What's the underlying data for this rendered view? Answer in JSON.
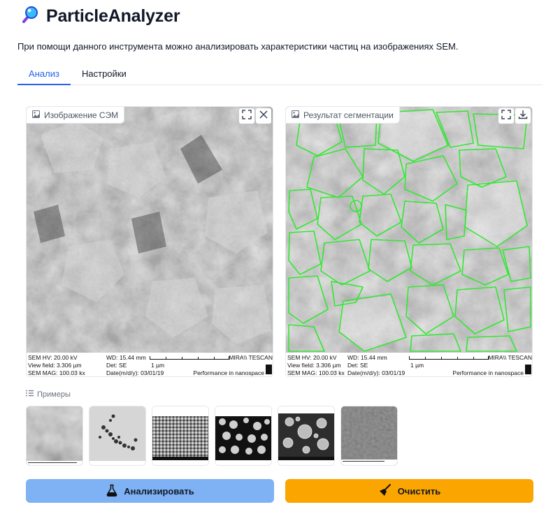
{
  "app": {
    "title": "ParticleAnalyzer",
    "description": "При помощи данного инструмента можно анализировать характеристики частиц на изображениях SEM."
  },
  "tabs": [
    {
      "label": "Анализ",
      "active": true
    },
    {
      "label": "Настройки",
      "active": false
    }
  ],
  "panels": {
    "input": {
      "label": "Изображение СЭМ",
      "tools": [
        "fullscreen-icon",
        "close-icon"
      ]
    },
    "output": {
      "label": "Результат сегментации",
      "tools": [
        "fullscreen-icon",
        "download-icon"
      ]
    }
  },
  "sem_info": {
    "hv": "SEM HV: 20.00 kV",
    "view_field": "View field: 3.306 µm",
    "mag": "SEM MAG: 100.03 kx",
    "wd": "WD: 15.44 mm",
    "det": "Det: SE",
    "date": "Date(m/d/y): 03/01/19",
    "scale": "1 µm",
    "brand": "MIRA\\\\ TESCAN",
    "slogan": "Performance in nanospace"
  },
  "examples": {
    "label": "Примеры",
    "items": [
      "example-1",
      "example-2",
      "example-3",
      "example-4",
      "example-5",
      "example-6"
    ]
  },
  "actions": {
    "analyze": "Анализировать",
    "clear": "Очистить"
  },
  "colors": {
    "accent": "#2563eb",
    "analyze_button": "#7fb2f5",
    "clear_button": "#fba500",
    "segmentation": "#22ee22"
  }
}
